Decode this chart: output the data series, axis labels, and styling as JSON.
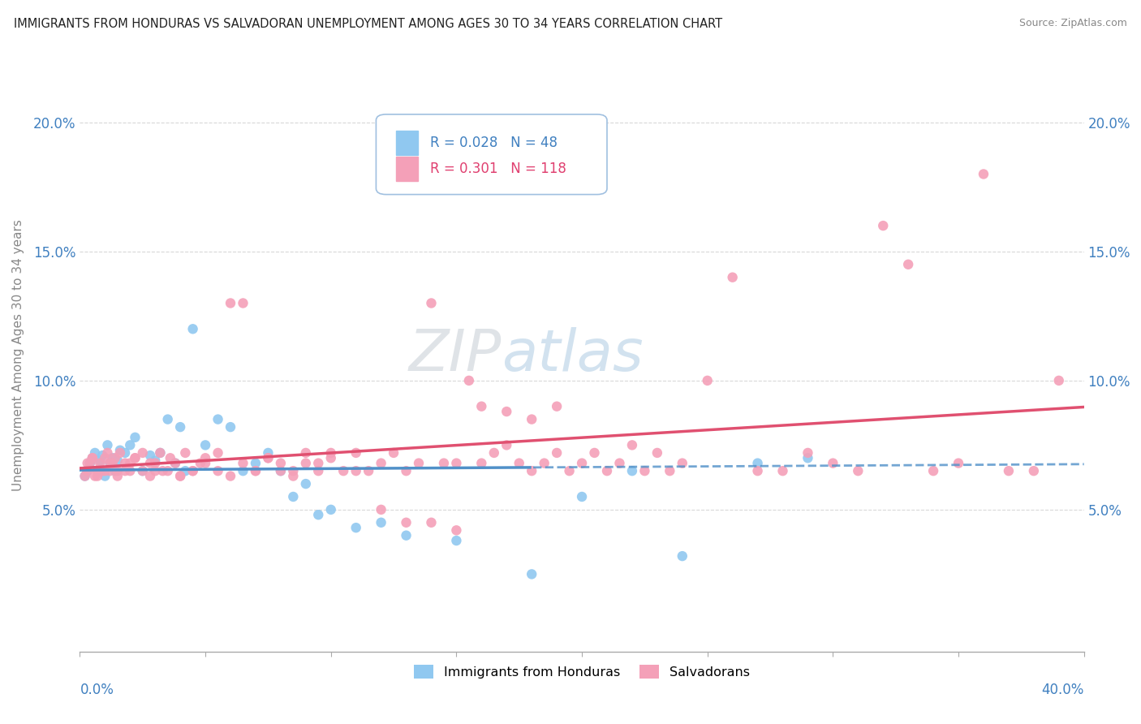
{
  "title": "IMMIGRANTS FROM HONDURAS VS SALVADORAN UNEMPLOYMENT AMONG AGES 30 TO 34 YEARS CORRELATION CHART",
  "source": "Source: ZipAtlas.com",
  "ylabel": "Unemployment Among Ages 30 to 34 years",
  "xlim": [
    0.0,
    0.4
  ],
  "ylim": [
    -0.005,
    0.225
  ],
  "yticks": [
    0.05,
    0.1,
    0.15,
    0.2
  ],
  "ytick_labels": [
    "5.0%",
    "10.0%",
    "15.0%",
    "20.0%"
  ],
  "legend1_r": "0.028",
  "legend1_n": "48",
  "legend2_r": "0.301",
  "legend2_n": "118",
  "color_blue": "#90c8f0",
  "color_pink": "#f4a0b8",
  "color_blue_line": "#5090c8",
  "color_pink_line": "#e05070",
  "color_blue_text": "#4080c0",
  "color_pink_text": "#e04070",
  "watermark_color": "#c8d8e8",
  "blue_scatter_x": [
    0.002,
    0.003,
    0.004,
    0.005,
    0.006,
    0.007,
    0.008,
    0.009,
    0.01,
    0.011,
    0.012,
    0.013,
    0.014,
    0.015,
    0.016,
    0.018,
    0.02,
    0.022,
    0.025,
    0.028,
    0.03,
    0.032,
    0.035,
    0.038,
    0.04,
    0.042,
    0.045,
    0.05,
    0.055,
    0.06,
    0.065,
    0.07,
    0.075,
    0.08,
    0.085,
    0.09,
    0.095,
    0.1,
    0.11,
    0.12,
    0.13,
    0.15,
    0.18,
    0.2,
    0.22,
    0.24,
    0.27,
    0.29
  ],
  "blue_scatter_y": [
    0.063,
    0.065,
    0.068,
    0.07,
    0.072,
    0.065,
    0.069,
    0.071,
    0.063,
    0.075,
    0.068,
    0.07,
    0.065,
    0.069,
    0.073,
    0.072,
    0.075,
    0.078,
    0.065,
    0.071,
    0.069,
    0.072,
    0.085,
    0.068,
    0.082,
    0.065,
    0.12,
    0.075,
    0.085,
    0.082,
    0.065,
    0.068,
    0.072,
    0.065,
    0.055,
    0.06,
    0.048,
    0.05,
    0.043,
    0.045,
    0.04,
    0.038,
    0.025,
    0.055,
    0.065,
    0.032,
    0.068,
    0.07
  ],
  "pink_scatter_x": [
    0.002,
    0.003,
    0.004,
    0.005,
    0.006,
    0.007,
    0.008,
    0.009,
    0.01,
    0.011,
    0.012,
    0.013,
    0.014,
    0.015,
    0.016,
    0.018,
    0.02,
    0.022,
    0.025,
    0.028,
    0.03,
    0.032,
    0.035,
    0.038,
    0.04,
    0.042,
    0.045,
    0.048,
    0.05,
    0.055,
    0.06,
    0.065,
    0.07,
    0.075,
    0.08,
    0.085,
    0.09,
    0.095,
    0.1,
    0.105,
    0.11,
    0.115,
    0.12,
    0.125,
    0.13,
    0.135,
    0.14,
    0.145,
    0.15,
    0.155,
    0.16,
    0.165,
    0.17,
    0.175,
    0.18,
    0.185,
    0.19,
    0.195,
    0.2,
    0.205,
    0.21,
    0.215,
    0.22,
    0.225,
    0.23,
    0.235,
    0.24,
    0.25,
    0.26,
    0.27,
    0.28,
    0.29,
    0.3,
    0.31,
    0.32,
    0.33,
    0.34,
    0.35,
    0.36,
    0.37,
    0.38,
    0.39,
    0.003,
    0.005,
    0.007,
    0.01,
    0.012,
    0.015,
    0.018,
    0.02,
    0.022,
    0.025,
    0.028,
    0.03,
    0.033,
    0.036,
    0.04,
    0.045,
    0.05,
    0.055,
    0.06,
    0.065,
    0.07,
    0.075,
    0.08,
    0.085,
    0.09,
    0.095,
    0.1,
    0.11,
    0.12,
    0.13,
    0.14,
    0.15,
    0.16,
    0.17,
    0.18,
    0.19
  ],
  "pink_scatter_y": [
    0.063,
    0.065,
    0.068,
    0.07,
    0.063,
    0.065,
    0.068,
    0.065,
    0.07,
    0.072,
    0.065,
    0.068,
    0.07,
    0.065,
    0.072,
    0.068,
    0.065,
    0.07,
    0.072,
    0.068,
    0.065,
    0.072,
    0.065,
    0.068,
    0.063,
    0.072,
    0.065,
    0.068,
    0.07,
    0.072,
    0.13,
    0.13,
    0.065,
    0.07,
    0.068,
    0.065,
    0.072,
    0.068,
    0.07,
    0.065,
    0.072,
    0.065,
    0.068,
    0.072,
    0.065,
    0.068,
    0.13,
    0.068,
    0.068,
    0.1,
    0.068,
    0.072,
    0.075,
    0.068,
    0.065,
    0.068,
    0.072,
    0.065,
    0.068,
    0.072,
    0.065,
    0.068,
    0.075,
    0.065,
    0.072,
    0.065,
    0.068,
    0.1,
    0.14,
    0.065,
    0.065,
    0.072,
    0.068,
    0.065,
    0.16,
    0.145,
    0.065,
    0.068,
    0.18,
    0.065,
    0.065,
    0.1,
    0.068,
    0.07,
    0.063,
    0.065,
    0.068,
    0.063,
    0.065,
    0.068,
    0.07,
    0.065,
    0.063,
    0.068,
    0.065,
    0.07,
    0.063,
    0.065,
    0.068,
    0.065,
    0.063,
    0.068,
    0.065,
    0.07,
    0.065,
    0.063,
    0.068,
    0.065,
    0.072,
    0.065,
    0.05,
    0.045,
    0.045,
    0.042,
    0.09,
    0.088,
    0.085,
    0.09
  ]
}
